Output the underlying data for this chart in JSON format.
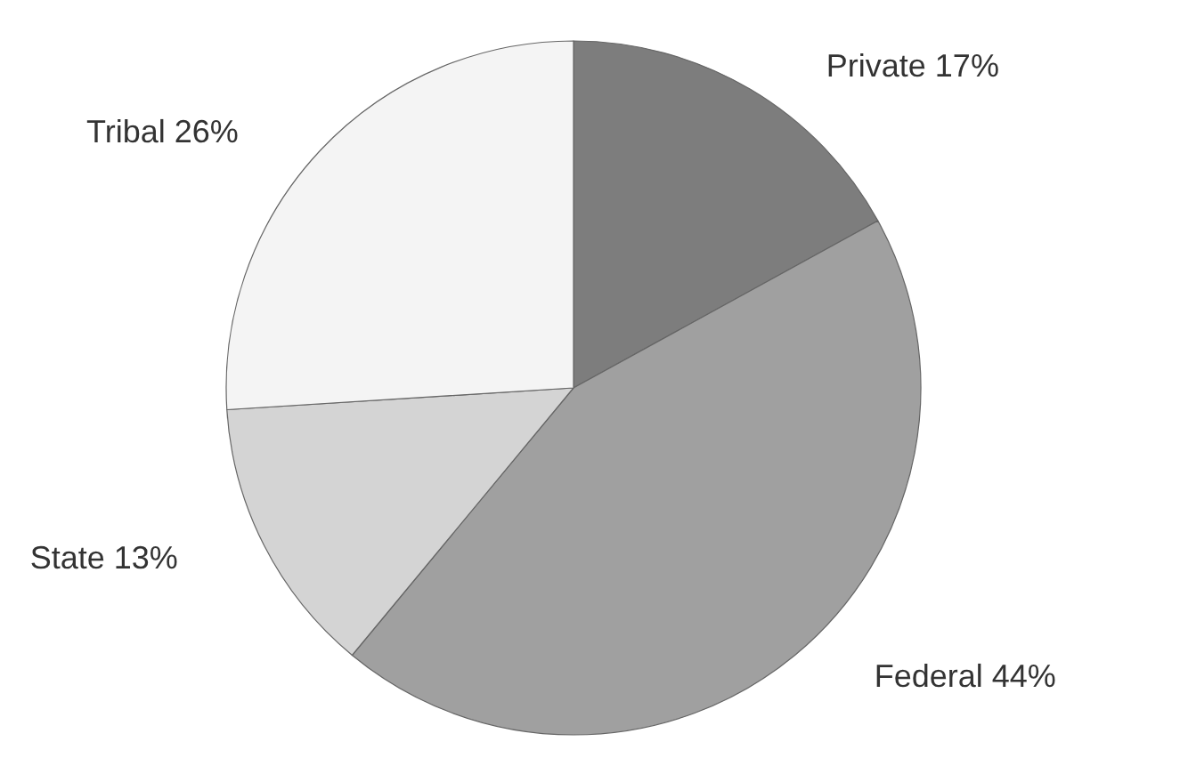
{
  "chart_data": {
    "type": "pie",
    "categories": [
      "Private",
      "Federal",
      "State",
      "Tribal"
    ],
    "values": [
      17,
      44,
      13,
      26
    ],
    "value_labels": [
      "17%",
      "44%",
      "13%",
      "26%"
    ],
    "colors": [
      "#7d7d7d",
      "#a0a0a0",
      "#d4d4d4",
      "#f4f4f4"
    ],
    "legend": false
  }
}
